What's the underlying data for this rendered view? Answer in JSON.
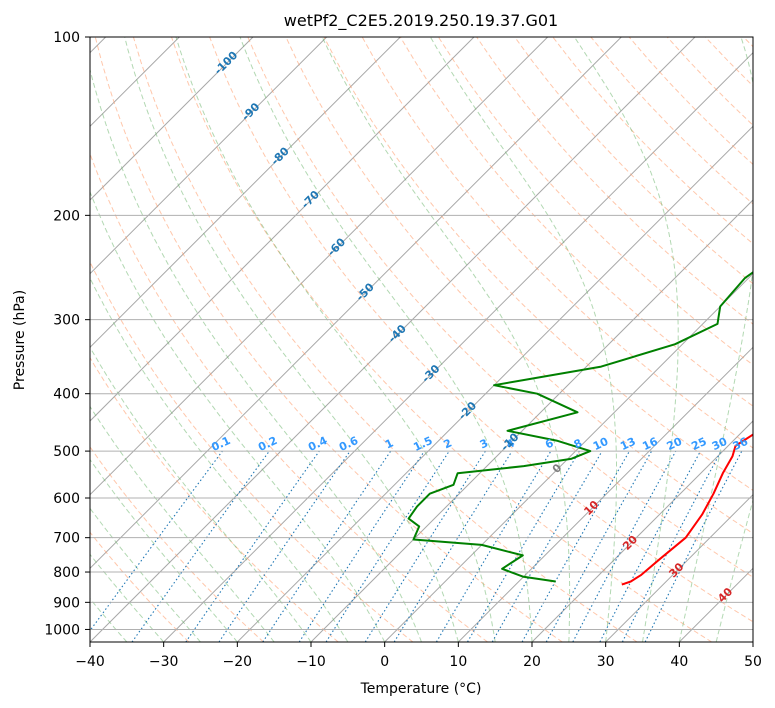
{
  "chart_data": {
    "type": "line",
    "title": "wetPf2_C2E5.2019.250.19.37.G01",
    "xlabel": "Temperature (°C)",
    "ylabel": "Pressure (hPa)",
    "xlim": [
      -40,
      50
    ],
    "ylim": [
      1050,
      100
    ],
    "y_scale": "log",
    "grid": true,
    "x_ticks": [
      -40,
      -30,
      -20,
      -10,
      0,
      10,
      20,
      30,
      40,
      50
    ],
    "x_tick_labels": [
      "−40",
      "−30",
      "−20",
      "−10",
      "0",
      "10",
      "20",
      "30",
      "40",
      "50"
    ],
    "y_ticks": [
      100,
      200,
      300,
      400,
      500,
      600,
      700,
      800,
      900,
      1000
    ],
    "y_tick_labels": [
      "100",
      "200",
      "300",
      "400",
      "500",
      "600",
      "700",
      "800",
      "900",
      "1000"
    ],
    "skew_deg": 45,
    "series": [
      {
        "color": "#ff0000",
        "points": [
          [
            0.5,
            100
          ],
          [
            -1.0,
            110
          ],
          [
            -2.0,
            125
          ],
          [
            0.5,
            155
          ],
          [
            3.0,
            175
          ],
          [
            5.5,
            200
          ],
          [
            8.0,
            240
          ],
          [
            11.5,
            275
          ],
          [
            14.5,
            300
          ],
          [
            18.0,
            340
          ],
          [
            21.0,
            380
          ],
          [
            21.6,
            420
          ],
          [
            22.2,
            460
          ],
          [
            21.0,
            490
          ],
          [
            22.0,
            510
          ],
          [
            23.0,
            545
          ],
          [
            24.5,
            590
          ],
          [
            25.8,
            640
          ],
          [
            26.7,
            700
          ],
          [
            26.1,
            760
          ],
          [
            25.7,
            810
          ],
          [
            25.2,
            830
          ],
          [
            24.4,
            840
          ]
        ]
      },
      {
        "color": "#008000",
        "points": [
          [
            0.5,
            100
          ],
          [
            -1.0,
            110
          ],
          [
            -2.0,
            125
          ],
          [
            -1.8,
            145
          ],
          [
            0.5,
            165
          ],
          [
            1.8,
            180
          ],
          [
            0.6,
            200
          ],
          [
            1.0,
            230
          ],
          [
            -0.5,
            255
          ],
          [
            0.0,
            285
          ],
          [
            2.0,
            305
          ],
          [
            -1.0,
            330
          ],
          [
            -8.0,
            360
          ],
          [
            -20.0,
            387
          ],
          [
            -13.0,
            400
          ],
          [
            -5.0,
            430
          ],
          [
            -12.0,
            462
          ],
          [
            -4.0,
            480
          ],
          [
            2.0,
            500
          ],
          [
            0.5,
            515
          ],
          [
            -5.0,
            530
          ],
          [
            -13.0,
            545
          ],
          [
            -12.0,
            570
          ],
          [
            -14.0,
            590
          ],
          [
            -14.0,
            620
          ],
          [
            -13.5,
            650
          ],
          [
            -11.0,
            670
          ],
          [
            -10.0,
            705
          ],
          [
            0.0,
            720
          ],
          [
            7.0,
            750
          ],
          [
            6.0,
            790
          ],
          [
            10.0,
            815
          ],
          [
            15.0,
            830
          ]
        ]
      }
    ],
    "mixing_ratio_labels": [
      "0.1",
      "0.2",
      "0.4",
      "0.6",
      "1",
      "1.5",
      "2",
      "3",
      "4",
      "6",
      "8",
      "10",
      "13",
      "16",
      "20",
      "25",
      "30",
      "36"
    ],
    "isotherm_labels": [
      "-100",
      "-90",
      "-80",
      "-70",
      "-60",
      "-50",
      "-40",
      "-30",
      "-20",
      "-10",
      "0",
      "10",
      "20",
      "30",
      "40"
    ]
  }
}
